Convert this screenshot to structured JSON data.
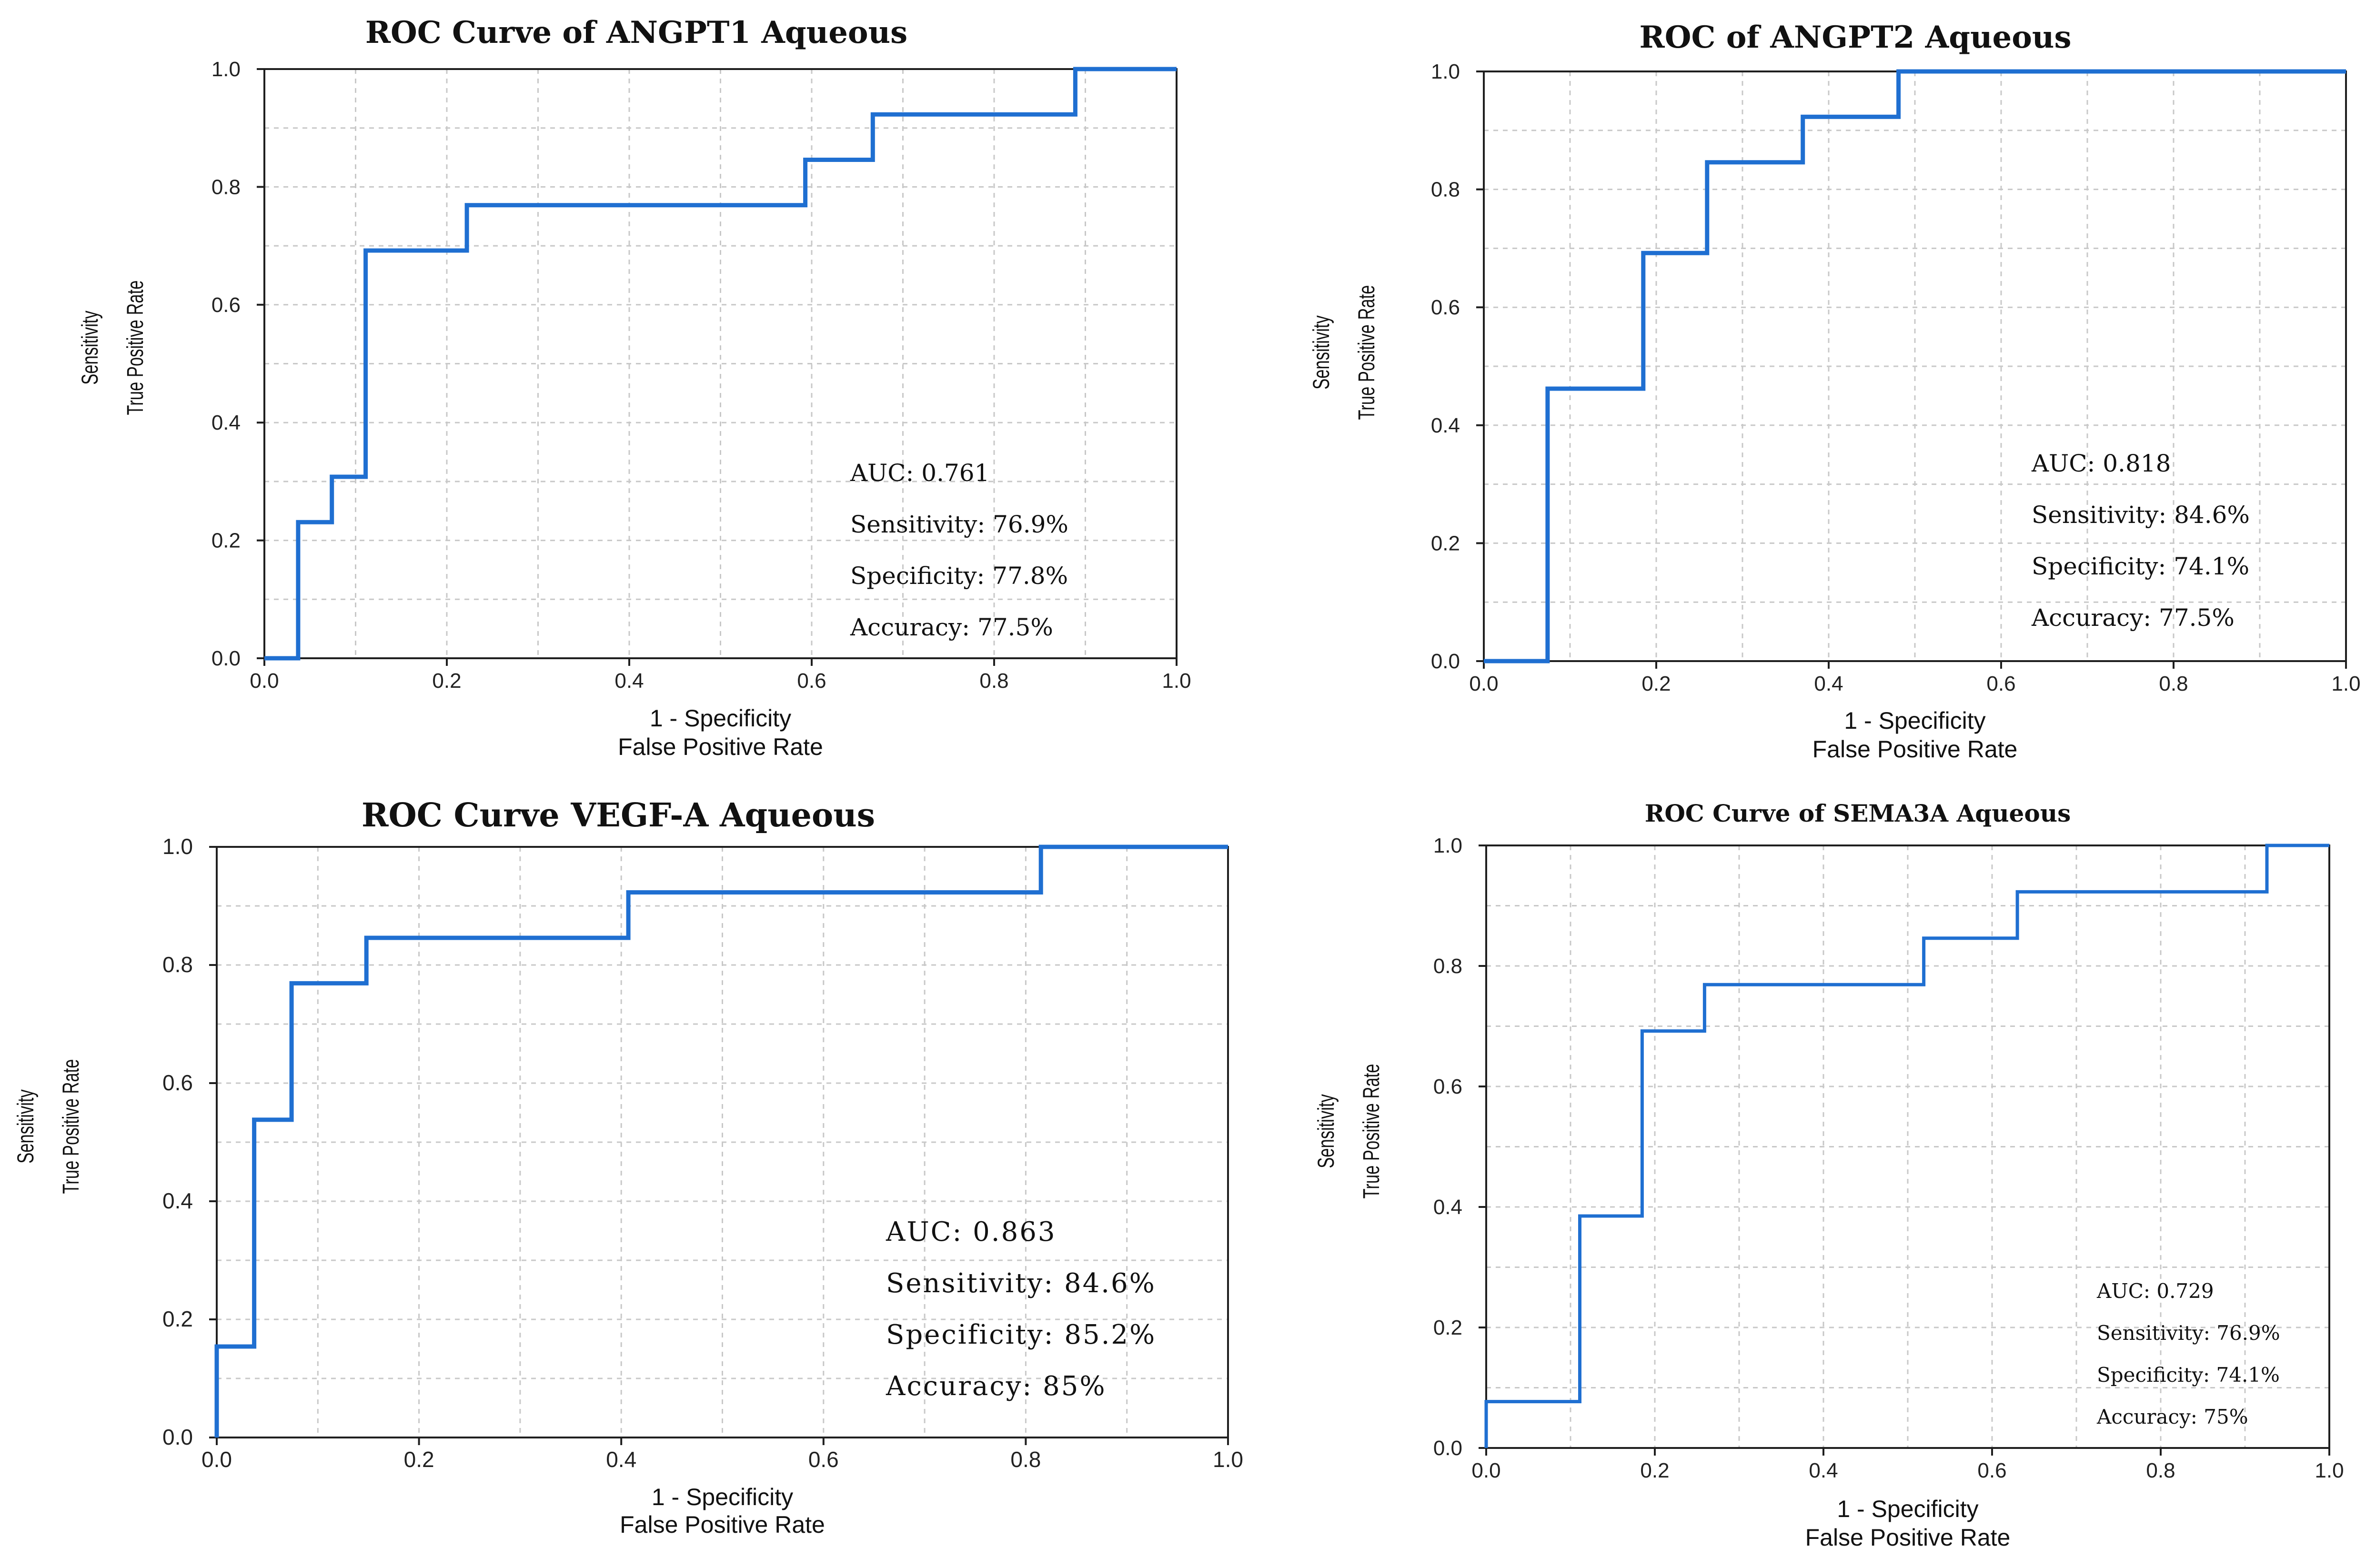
{
  "chart_data": [
    {
      "type": "line",
      "title": "ROC Curve of ANGPT1 Aqueous",
      "xlabel": "1 - Specificity",
      "xlabel2": "False Positive Rate",
      "ylabel": "Sensitivity",
      "ylabel2": "True Positive Rate",
      "xlim": [
        0,
        1
      ],
      "ylim": [
        0,
        1
      ],
      "xticks": [
        "0.0",
        "0.2",
        "0.4",
        "0.6",
        "0.8",
        "1.0"
      ],
      "yticks": [
        "0.0",
        "0.2",
        "0.4",
        "0.6",
        "0.8",
        "1.0"
      ],
      "grid": true,
      "color": "#1f6fd1",
      "series": [
        {
          "name": "ROC",
          "x": [
            0,
            0.037,
            0.037,
            0.074,
            0.074,
            0.111,
            0.111,
            0.222,
            0.222,
            0.593,
            0.593,
            0.667,
            0.667,
            0.889,
            0.889,
            1.0
          ],
          "y": [
            0,
            0,
            0.231,
            0.231,
            0.308,
            0.308,
            0.692,
            0.692,
            0.769,
            0.769,
            0.846,
            0.846,
            0.923,
            0.923,
            1.0,
            1.0
          ]
        }
      ],
      "stats": [
        "AUC: 0.761",
        "Sensitivity: 76.9%",
        "Specificity: 77.8%",
        "Accuracy: 77.5%"
      ],
      "stats_position": "bottom-right"
    },
    {
      "type": "line",
      "title": "ROC of ANGPT2 Aqueous",
      "xlabel": "1 - Specificity",
      "xlabel2": "False Positive Rate",
      "ylabel": "Sensitivity",
      "ylabel2": "True Positive Rate",
      "xlim": [
        0,
        1
      ],
      "ylim": [
        0,
        1
      ],
      "xticks": [
        "0.0",
        "0.2",
        "0.4",
        "0.6",
        "0.8",
        "1.0"
      ],
      "yticks": [
        "0.0",
        "0.2",
        "0.4",
        "0.6",
        "0.8",
        "1.0"
      ],
      "grid": true,
      "color": "#1f6fd1",
      "series": [
        {
          "name": "ROC",
          "x": [
            0,
            0.074,
            0.074,
            0.185,
            0.185,
            0.259,
            0.259,
            0.37,
            0.37,
            0.481,
            0.481,
            1.0
          ],
          "y": [
            0,
            0,
            0.462,
            0.462,
            0.692,
            0.692,
            0.846,
            0.846,
            0.923,
            0.923,
            1.0,
            1.0
          ]
        }
      ],
      "stats": [
        "AUC: 0.818",
        "Sensitivity: 84.6%",
        "Specificity: 74.1%",
        "Accuracy: 77.5%"
      ],
      "stats_position": "bottom-right"
    },
    {
      "type": "line",
      "title": "ROC Curve VEGF-A Aqueous",
      "xlabel": "1 - Specificity",
      "xlabel2": "False Positive Rate",
      "ylabel": "Sensitivity",
      "ylabel2": "True Positive Rate",
      "xlim": [
        0,
        1
      ],
      "ylim": [
        0,
        1
      ],
      "xticks": [
        "0.0",
        "0.2",
        "0.4",
        "0.6",
        "0.8",
        "1.0"
      ],
      "yticks": [
        "0.0",
        "0.2",
        "0.4",
        "0.6",
        "0.8",
        "1.0"
      ],
      "grid": true,
      "color": "#1f6fd1",
      "series": [
        {
          "name": "ROC",
          "x": [
            0,
            0,
            0.037,
            0.037,
            0.074,
            0.074,
            0.148,
            0.148,
            0.407,
            0.407,
            0.815,
            0.815,
            1.0
          ],
          "y": [
            0,
            0.154,
            0.154,
            0.538,
            0.538,
            0.769,
            0.769,
            0.846,
            0.846,
            0.923,
            0.923,
            1.0,
            1.0
          ]
        }
      ],
      "stats": [
        "AUC: 0.863",
        "Sensitivity: 84.6%",
        "Specificity: 85.2%",
        "Accuracy: 85%"
      ],
      "stats_position": "bottom-right"
    },
    {
      "type": "line",
      "title": "ROC Curve of SEMA3A Aqueous",
      "xlabel": "1 - Specificity",
      "xlabel2": "False Positive Rate",
      "ylabel": "Sensitivity",
      "ylabel2": "True Positive Rate",
      "xlim": [
        0,
        1
      ],
      "ylim": [
        0,
        1
      ],
      "xticks": [
        "0.0",
        "0.2",
        "0.4",
        "0.6",
        "0.8",
        "1.0"
      ],
      "yticks": [
        "0.0",
        "0.2",
        "0.4",
        "0.6",
        "0.8",
        "1.0"
      ],
      "grid": true,
      "color": "#1f6fd1",
      "series": [
        {
          "name": "ROC",
          "x": [
            0,
            0,
            0.111,
            0.111,
            0.185,
            0.185,
            0.259,
            0.259,
            0.519,
            0.519,
            0.63,
            0.63,
            0.926,
            0.926,
            1.0
          ],
          "y": [
            0,
            0.077,
            0.077,
            0.385,
            0.385,
            0.692,
            0.692,
            0.769,
            0.769,
            0.846,
            0.846,
            0.923,
            0.923,
            1.0,
            1.0
          ]
        }
      ],
      "stats": [
        "AUC: 0.729",
        "Sensitivity: 76.9%",
        "Specificity: 74.1%",
        "Accuracy: 75%"
      ],
      "stats_position": "bottom-right"
    }
  ]
}
